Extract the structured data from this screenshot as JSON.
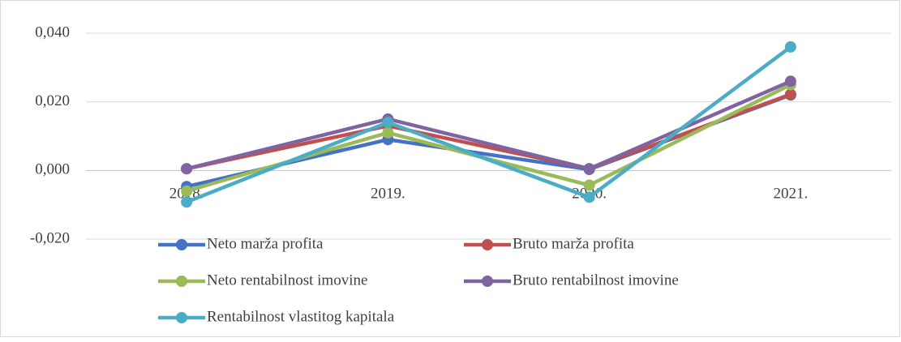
{
  "chart_data": {
    "type": "line",
    "categories": [
      "2018.",
      "2019.",
      "2020.",
      "2021."
    ],
    "series": [
      {
        "name": "Neto marža profita",
        "color": "#4472c4",
        "values": [
          -0.0047,
          0.009,
          0.0003,
          0.022
        ]
      },
      {
        "name": "Bruto marža profita",
        "color": "#c0504d",
        "values": [
          0.0005,
          0.013,
          0.0005,
          0.0222
        ]
      },
      {
        "name": "Neto rentabilnost imovine",
        "color": "#9bbb59",
        "values": [
          -0.006,
          0.011,
          -0.0043,
          0.025
        ]
      },
      {
        "name": "Bruto rentabilnost imovine",
        "color": "#8064a2",
        "values": [
          0.0005,
          0.015,
          0.0005,
          0.026
        ]
      },
      {
        "name": "Rentabilnost vlastitog kapitala",
        "color": "#4bacc6",
        "values": [
          -0.0092,
          0.014,
          -0.0078,
          0.036
        ]
      }
    ],
    "ylim": [
      -0.02,
      0.04
    ],
    "yticks": [
      {
        "value": -0.02,
        "label": "-0,020"
      },
      {
        "value": 0,
        "label": "0,000"
      },
      {
        "value": 0.02,
        "label": "0,020"
      },
      {
        "value": 0.04,
        "label": "0,040"
      }
    ],
    "grid": true
  }
}
